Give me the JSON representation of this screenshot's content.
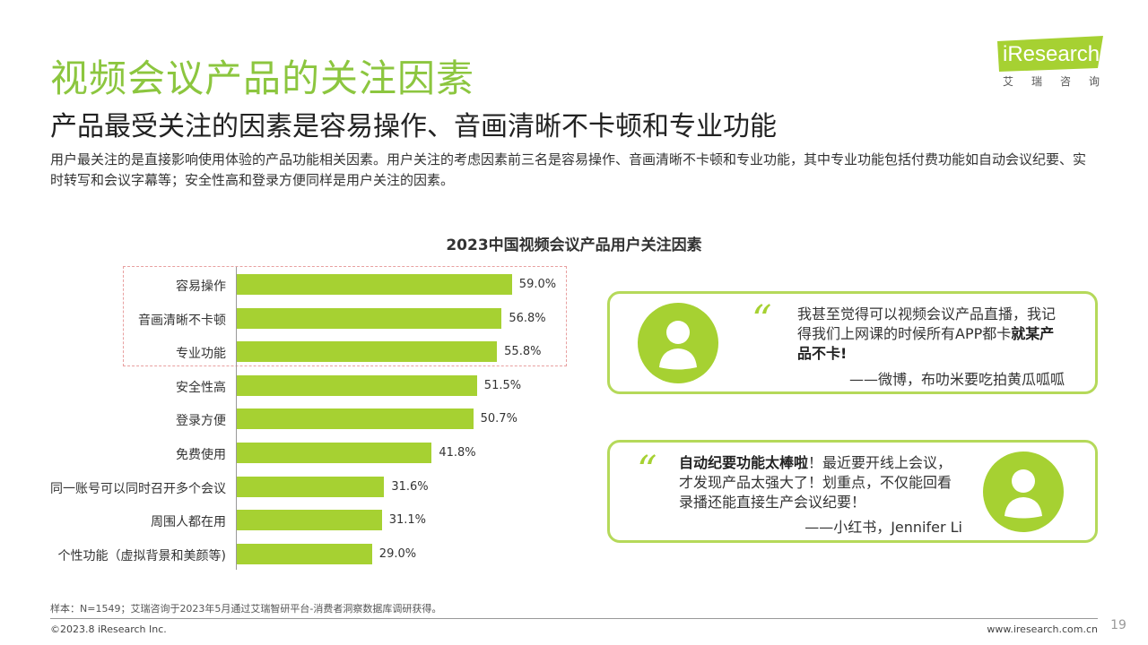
{
  "header": {
    "title": "视频会议产品的关注因素",
    "subtitle": "产品最受关注的因素是容易操作、音画清晰不卡顿和专业功能",
    "description": "用户最关注的是直接影响使用体验的产品功能相关因素。用户关注的考虑因素前三名是容易操作、音画清晰不卡顿和专业功能，其中专业功能包括付费功能如自动会议纪要、实时转写和会议字幕等；安全性高和登录方便同样是用户关注的因素。"
  },
  "logo": {
    "brand": "iResearch",
    "cn": "艾瑞咨询",
    "color": "#a6d132"
  },
  "chart_data": {
    "type": "bar",
    "orientation": "horizontal",
    "title": "2023中国视频会议产品用户关注因素",
    "categories": [
      "容易操作",
      "音画清晰不卡顿",
      "专业功能",
      "安全性高",
      "登录方便",
      "免费使用",
      "同一账号可以同时召开多个会议",
      "周围人都在用",
      "个性功能（虚拟背景和美颜等)"
    ],
    "values": [
      59.0,
      56.8,
      55.8,
      51.5,
      50.7,
      41.8,
      31.6,
      31.1,
      29.0
    ],
    "value_labels": [
      "59.0%",
      "56.8%",
      "55.8%",
      "51.5%",
      "50.7%",
      "41.8%",
      "31.6%",
      "31.1%",
      "29.0%"
    ],
    "highlighted_top": 3,
    "bar_color": "#a6d132",
    "highlight_border_color": "#e8a0a0"
  },
  "quotes": [
    {
      "mark": "“",
      "text_html": "我甚至觉得可以视频会议产品直播，我记得我们上网课的时候所有APP都卡<b>就某产品不卡!</b>",
      "source": "——微博，布叻米要吃拍黄瓜呱呱"
    },
    {
      "mark": "“",
      "text_html": "<b>自动纪要功能太棒啦</b>！最近要开线上会议，才发现产品太强大了！划重点，不仅能回看录播还能直接生产会议纪要！",
      "source": "——小红书，Jennifer Li"
    }
  ],
  "footer": {
    "note": "样本：N=1549；艾瑞咨询于2023年5月通过艾瑞智研平台-消费者洞察数据库调研获得。",
    "copyright": "©2023.8 iResearch Inc.",
    "website": "www.iresearch.com.cn",
    "page": "19"
  },
  "colors": {
    "accent": "#8cc63f",
    "bar": "#a6d132",
    "quote_border": "#b5d95a"
  }
}
